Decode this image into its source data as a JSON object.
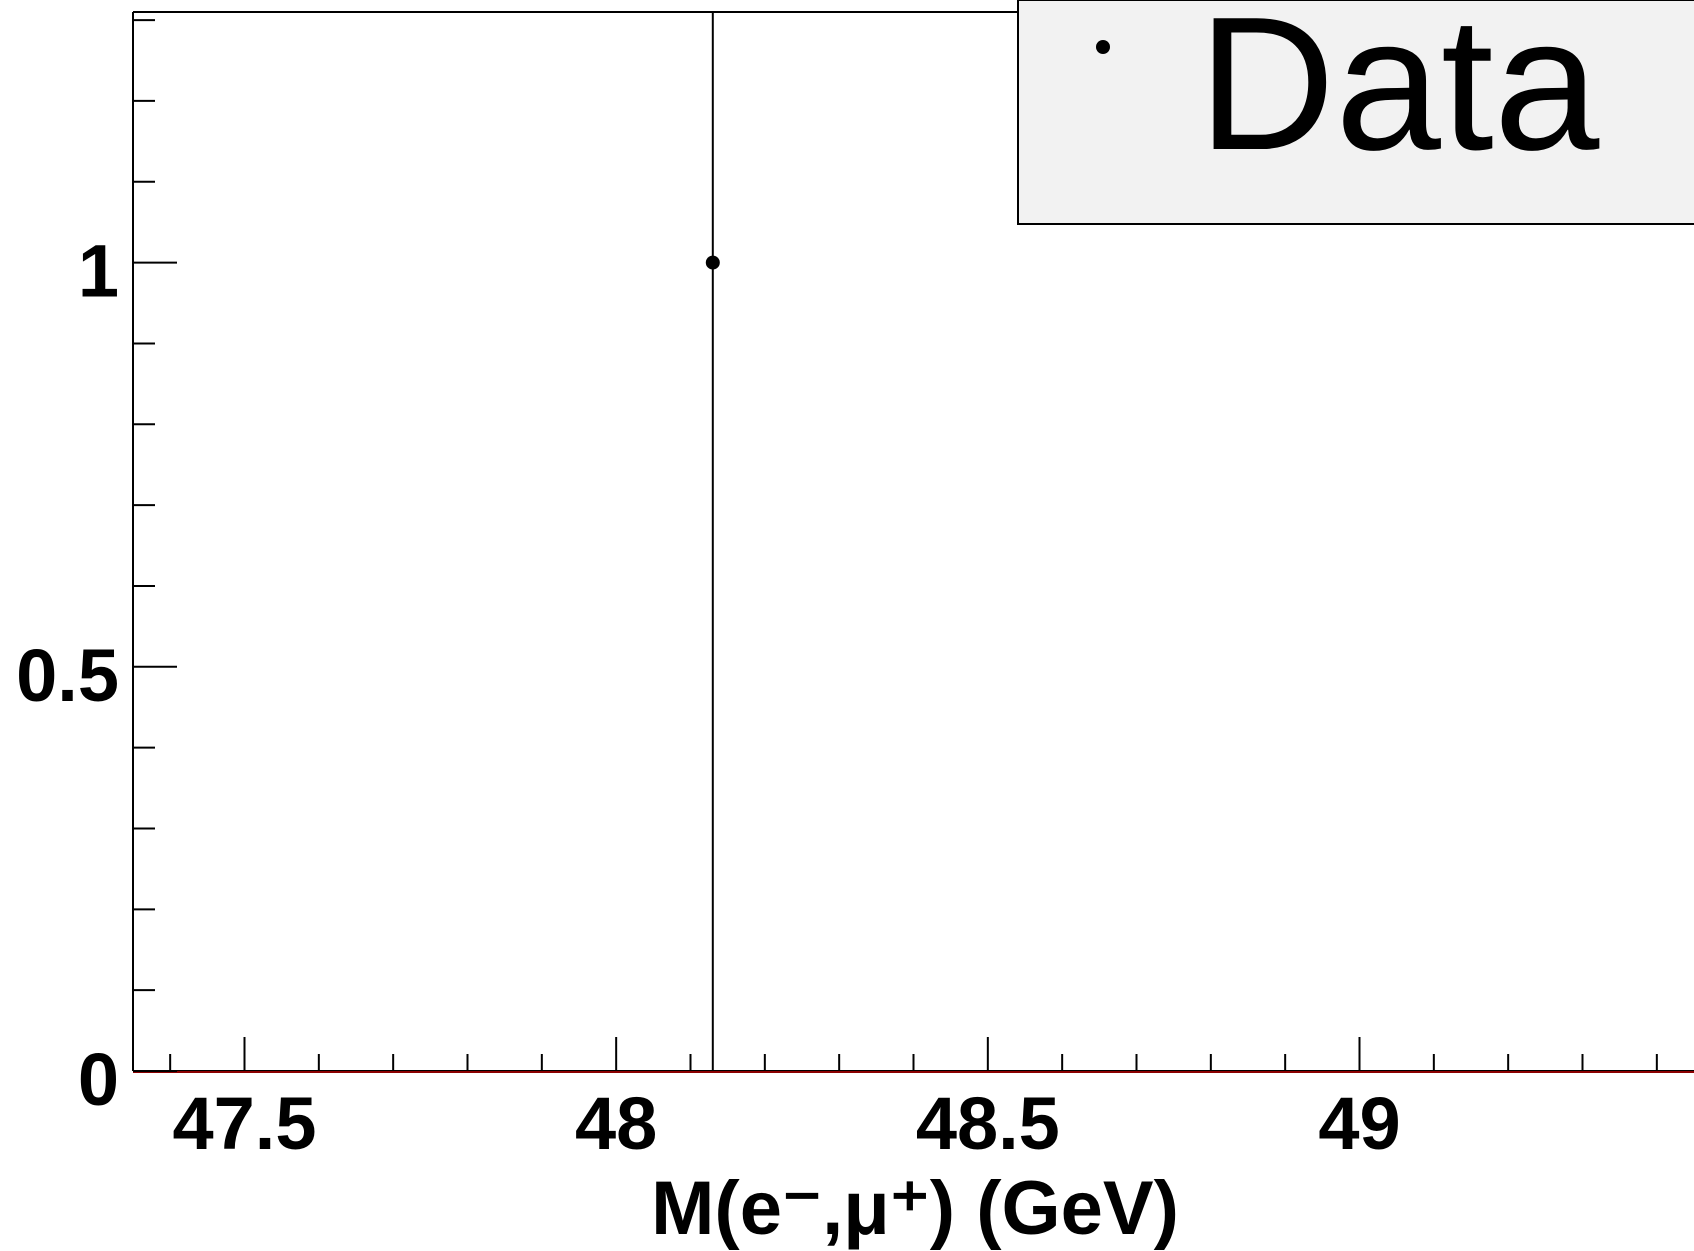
{
  "chart_data": {
    "type": "scatter",
    "xlabel": "M(e⁻,μ⁺) (GeV)",
    "ylabel": "",
    "xlim": [
      47.35,
      49.45
    ],
    "ylim": [
      0,
      1.31
    ],
    "x_ticks": [
      47.5,
      48,
      48.5,
      49
    ],
    "x_tick_labels": [
      "47.5",
      "48",
      "48.5",
      "49"
    ],
    "y_ticks": [
      0,
      0.5,
      1
    ],
    "y_tick_labels": [
      "0",
      "0.5",
      "1"
    ],
    "series": [
      {
        "name": "Data",
        "points": [
          {
            "x": 48.13,
            "y": 1,
            "y_err_low": 1,
            "y_err_high": 1
          }
        ]
      }
    ],
    "legend": {
      "position": "top-right",
      "entries": [
        "Data"
      ]
    },
    "grid": false,
    "colors": {
      "marker": "#000000",
      "legend_fill": "#f2f2f2",
      "baseline": "#8b0000"
    }
  }
}
